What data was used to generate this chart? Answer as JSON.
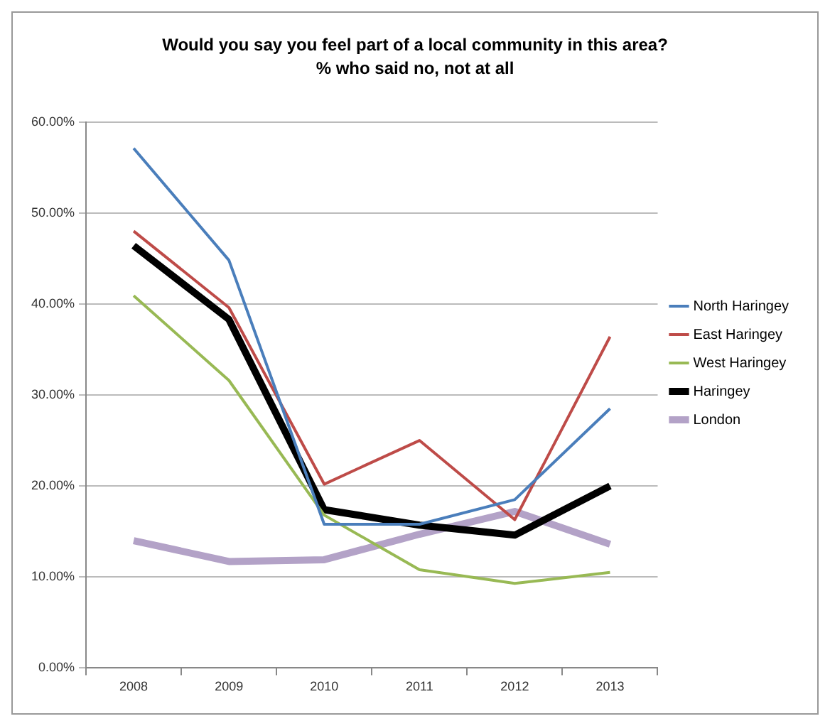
{
  "chart_data": {
    "type": "line",
    "title": "Would you say you feel part of a local community in this area?",
    "subtitle": "% who said no, not at all",
    "categories": [
      "2008",
      "2009",
      "2010",
      "2011",
      "2012",
      "2013"
    ],
    "series": [
      {
        "name": "North Haringey",
        "color": "#4a7ebb",
        "values": [
          57.1,
          44.8,
          15.8,
          15.8,
          18.5,
          28.5
        ]
      },
      {
        "name": "East Haringey",
        "color": "#be4b48",
        "values": [
          48.0,
          39.6,
          20.2,
          25.0,
          16.3,
          36.4
        ]
      },
      {
        "name": "West Haringey",
        "color": "#98b954",
        "values": [
          40.9,
          31.6,
          16.8,
          10.8,
          9.3,
          10.5
        ]
      },
      {
        "name": "Haringey",
        "color": "#000000",
        "values": [
          46.4,
          38.3,
          17.4,
          15.7,
          14.6,
          20.0
        ]
      },
      {
        "name": "London",
        "color": "#b3a2c7",
        "values": [
          14.0,
          11.7,
          11.9,
          14.7,
          17.2,
          13.6
        ]
      }
    ],
    "ylim": [
      0,
      60
    ],
    "yticks": [
      {
        "value": 0,
        "label": "0.00%"
      },
      {
        "value": 10,
        "label": "10.00%"
      },
      {
        "value": 20,
        "label": "20.00%"
      },
      {
        "value": 30,
        "label": "30.00%"
      },
      {
        "value": 40,
        "label": "40.00%"
      },
      {
        "value": 50,
        "label": "50.00%"
      },
      {
        "value": 60,
        "label": "60.00%"
      }
    ],
    "grid": "y",
    "legend": "right",
    "marker": "none",
    "line_style": "solid"
  }
}
